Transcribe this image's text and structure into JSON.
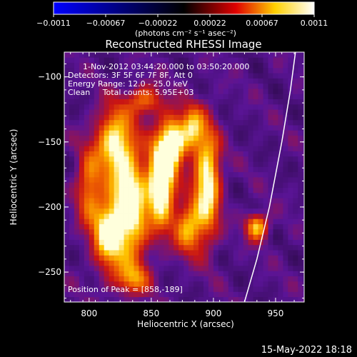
{
  "chart_data": {
    "type": "heatmap",
    "title": "Reconstructed RHESSI Image",
    "xlabel": "Heliocentric X (arcsec)",
    "ylabel": "Heliocentric Y (arcsec)",
    "xlim": [
      780,
      973
    ],
    "ylim": [
      -273,
      -81
    ],
    "x_ticks": [
      800,
      850,
      900,
      950
    ],
    "y_ticks": [
      -100,
      -150,
      -200,
      -250
    ],
    "x_tick_labels": [
      "800",
      "850",
      "900",
      "950"
    ],
    "y_tick_labels": [
      "−100",
      "−150",
      "−200",
      "−250"
    ],
    "colorbar": {
      "range": [
        -0.0011,
        0.0011
      ],
      "tick_labels": [
        "−0.0011",
        "−0.00067",
        "−0.00022",
        "0.00022",
        "0.00067",
        "0.0011"
      ],
      "unit_label": "(photons cm⁻² s⁻¹ asec⁻²)",
      "colormap_stops": [
        "#0000ff",
        "#000000",
        "#e00000",
        "#ffd000",
        "#ffffff"
      ]
    },
    "annotations": {
      "time_range": "1-Nov-2012 03:44:20.000 to 03:50:20.000",
      "detectors": "Detectors: 3F 5F 6F 7F 8F, Att 0",
      "energy_range": "Energy Range: 12.0 - 25.0 keV",
      "method": "Clean     Total counts: 5.95E+03",
      "peak": "Position of Peak = [858,-189]"
    },
    "peak_position": [
      858,
      -189
    ],
    "sources": [
      {
        "x": 858,
        "y": -180,
        "sigma_x": 7,
        "sigma_y": 22,
        "amp": 1.0
      },
      {
        "x": 868,
        "y": -150,
        "sigma_x": 7,
        "sigma_y": 14,
        "amp": 0.75
      },
      {
        "x": 833,
        "y": -200,
        "sigma_x": 10,
        "sigma_y": 30,
        "amp": 0.8
      },
      {
        "x": 820,
        "y": -150,
        "sigma_x": 10,
        "sigma_y": 18,
        "amp": 0.65
      },
      {
        "x": 815,
        "y": -220,
        "sigma_x": 8,
        "sigma_y": 18,
        "amp": 0.7
      },
      {
        "x": 895,
        "y": -180,
        "sigma_x": 7,
        "sigma_y": 28,
        "amp": 0.75
      },
      {
        "x": 883,
        "y": -140,
        "sigma_x": 6,
        "sigma_y": 12,
        "amp": 0.55
      },
      {
        "x": 880,
        "y": -215,
        "sigma_x": 8,
        "sigma_y": 14,
        "amp": 0.55
      },
      {
        "x": 935,
        "y": -215,
        "sigma_x": 6,
        "sigma_y": 7,
        "amp": 0.6
      },
      {
        "x": 800,
        "y": -185,
        "sigma_x": 7,
        "sigma_y": 20,
        "amp": 0.45
      },
      {
        "x": 845,
        "y": -118,
        "sigma_x": 10,
        "sigma_y": 8,
        "amp": 0.4
      },
      {
        "x": 835,
        "y": -255,
        "sigma_x": 10,
        "sigma_y": 8,
        "amp": 0.35
      }
    ],
    "limb_curve": [
      [
        925,
        -273
      ],
      [
        935,
        -240
      ],
      [
        945,
        -200
      ],
      [
        955,
        -150
      ],
      [
        962,
        -110
      ],
      [
        966,
        -81
      ]
    ],
    "grid": false
  },
  "footer": {
    "timestamp": "15-May-2022 18:18"
  }
}
